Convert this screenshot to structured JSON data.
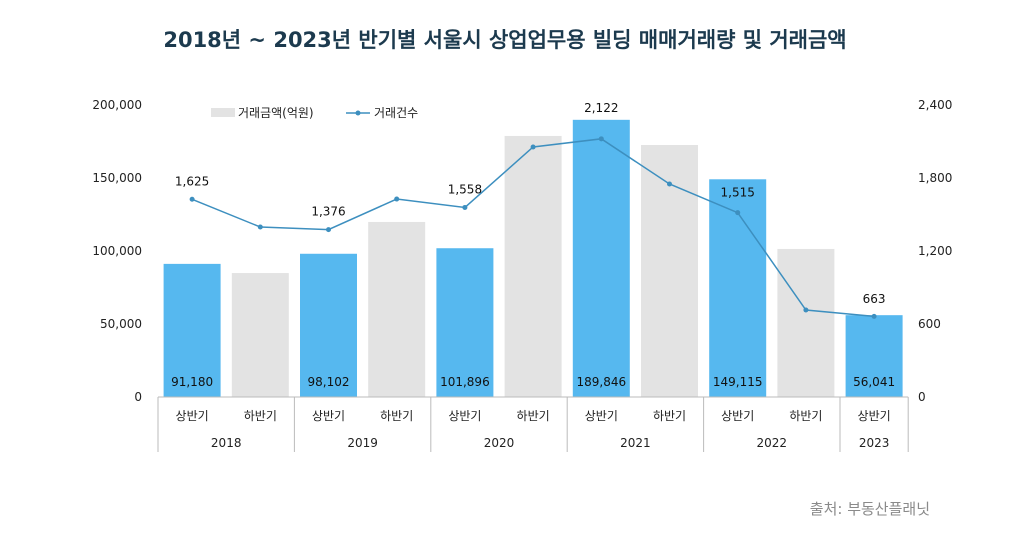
{
  "title": "2018년 ~ 2023년 반기별 서울시 상업업무용 빌딩 매매거래량 및 거래금액",
  "source": "출처: 부동산플래닛",
  "chart_data": {
    "type": "bar+line",
    "title": "2018년 ~ 2023년 반기별 서울시 상업업무용 빌딩 매매거래량 및 거래금액",
    "categories": [
      "상반기",
      "하반기",
      "상반기",
      "하반기",
      "상반기",
      "하반기",
      "상반기",
      "하반기",
      "상반기",
      "하반기",
      "상반기"
    ],
    "groups": [
      {
        "label": "2018",
        "span": 2
      },
      {
        "label": "2019",
        "span": 2
      },
      {
        "label": "2020",
        "span": 2
      },
      {
        "label": "2021",
        "span": 2
      },
      {
        "label": "2022",
        "span": 2
      },
      {
        "label": "2023",
        "span": 1
      }
    ],
    "series": [
      {
        "name": "거래금액(억원)",
        "type": "bar",
        "axis": "left",
        "values": [
          91180,
          84900,
          98102,
          119900,
          101896,
          178800,
          189846,
          172600,
          149115,
          101400,
          56041
        ],
        "labels": [
          "91,180",
          null,
          "98,102",
          null,
          "101,896",
          null,
          "189,846",
          null,
          "149,115",
          null,
          "56,041"
        ]
      },
      {
        "name": "거래건수",
        "type": "line",
        "axis": "right",
        "values": [
          1625,
          1397,
          1376,
          1627,
          1558,
          2055,
          2122,
          1751,
          1515,
          715,
          663
        ],
        "labels": [
          "1,625",
          null,
          "1,376",
          null,
          "1,558",
          null,
          "2,122",
          null,
          "1,515",
          null,
          "663"
        ]
      }
    ],
    "y_left": {
      "range": [
        0,
        200000
      ],
      "ticks": [
        "0",
        "50,000",
        "100,000",
        "150,000",
        "200,000"
      ]
    },
    "y_right": {
      "range": [
        0,
        2400
      ],
      "ticks": [
        "0",
        "600",
        "1,200",
        "1,800",
        "2,400"
      ]
    },
    "legend": "top-left",
    "grid": false,
    "colors": {
      "bar_h1": "#56b8ef",
      "bar_h2": "#e3e3e3",
      "line": "#3d8fbf",
      "title": "#1c3a4e"
    }
  }
}
